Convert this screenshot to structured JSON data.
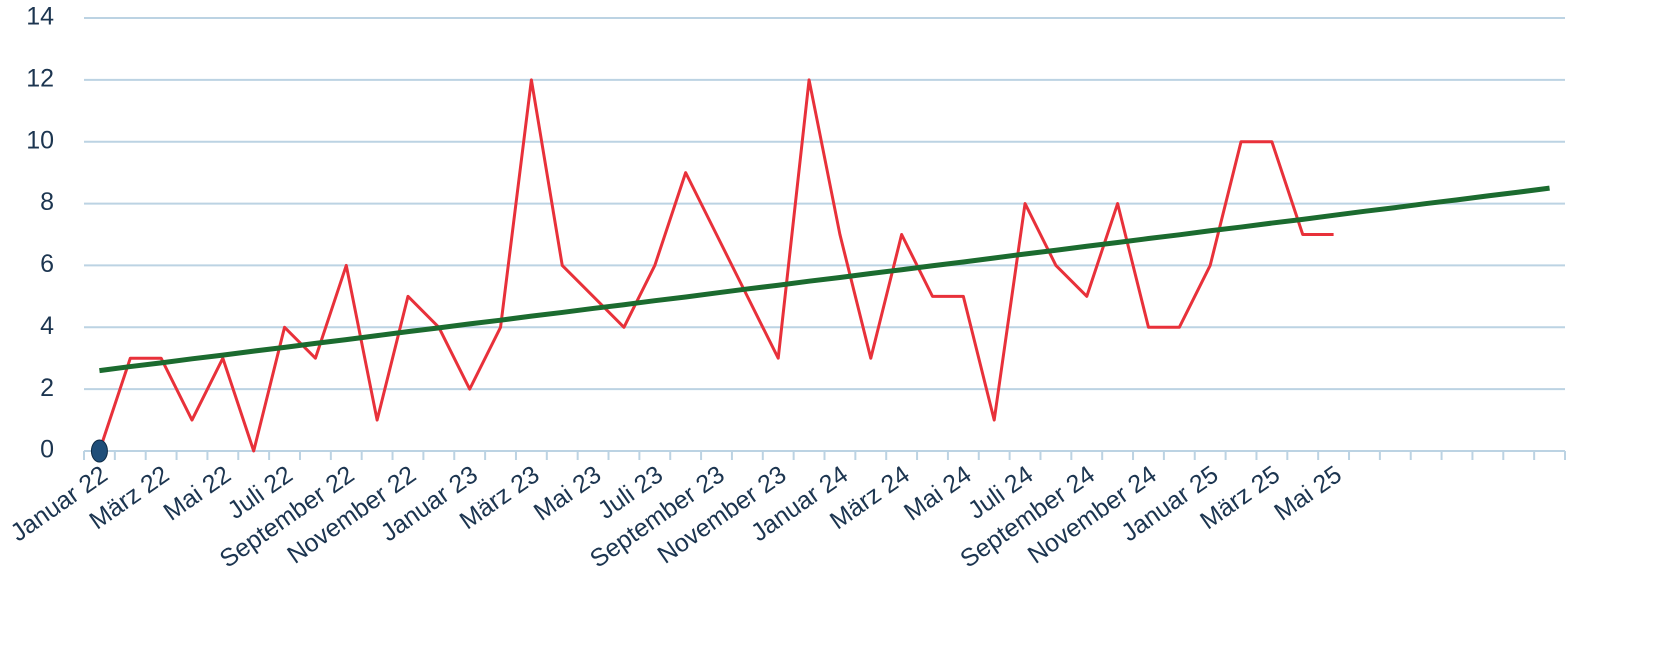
{
  "chart_data": {
    "type": "line",
    "categories": [
      "Januar 22",
      null,
      "März 22",
      null,
      "Mai 22",
      null,
      "Juli 22",
      null,
      "September 22",
      null,
      "November 22",
      null,
      "Januar 23",
      null,
      "März 23",
      null,
      "Mai 23",
      null,
      "Juli 23",
      null,
      "September 23",
      null,
      "November 23",
      null,
      "Januar 24",
      null,
      "März 24",
      null,
      "Mai 24",
      null,
      "Juli 24",
      null,
      "September 24",
      null,
      "November 24",
      null,
      "Januar 25",
      null,
      "März 25",
      null,
      "Mai 25",
      null,
      null,
      null,
      null,
      null,
      null,
      null
    ],
    "series": [
      {
        "color": "#e8313a",
        "marker_color": "#1f4e79",
        "values": [
          0,
          3,
          3,
          1,
          3,
          0,
          4,
          3,
          6,
          1,
          5,
          4,
          2,
          4,
          12,
          6,
          5,
          4,
          6,
          9,
          7,
          5,
          3,
          12,
          7,
          3,
          7,
          5,
          5,
          1,
          8,
          6,
          5,
          8,
          4,
          4,
          6,
          10,
          10,
          7,
          7,
          null,
          null,
          null,
          null,
          null,
          null,
          null
        ]
      },
      {
        "color": "#1b6b2f",
        "values": [
          2.6,
          2.73,
          2.85,
          2.98,
          3.1,
          3.23,
          3.35,
          3.48,
          3.6,
          3.73,
          3.86,
          3.98,
          4.11,
          4.23,
          4.36,
          4.48,
          4.61,
          4.73,
          4.86,
          4.98,
          5.11,
          5.24,
          5.36,
          5.49,
          5.61,
          5.74,
          5.86,
          5.99,
          6.11,
          6.24,
          6.37,
          6.49,
          6.62,
          6.74,
          6.87,
          6.99,
          7.12,
          7.24,
          7.37,
          7.49,
          7.62,
          7.75,
          7.87,
          8.0,
          8.12,
          8.25,
          8.37,
          8.5
        ]
      }
    ],
    "ylim": [
      0,
      14
    ],
    "yticks": [
      0,
      2,
      4,
      6,
      8,
      10,
      12,
      14
    ],
    "grid": true
  }
}
